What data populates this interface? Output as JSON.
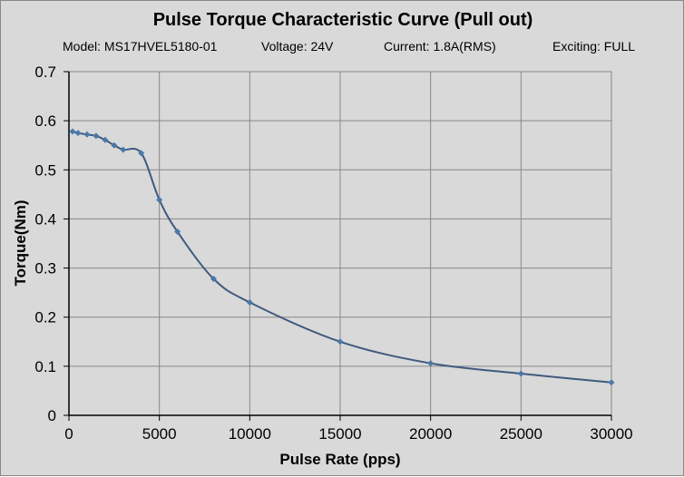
{
  "chart_data": {
    "type": "line",
    "title": "Pulse Torque Characteristic Curve (Pull out)",
    "subtitle": {
      "model": "Model: MS17HVEL5180-01",
      "voltage": "Voltage: 24V",
      "current": "Current:  1.8A(RMS)",
      "exciting": "Exciting: FULL"
    },
    "xlabel": "Pulse Rate (pps)",
    "ylabel": "Torque(Nm)",
    "xlim": [
      0,
      30000
    ],
    "ylim": [
      0,
      0.7
    ],
    "xticks": [
      "0",
      "5000",
      "10000",
      "15000",
      "20000",
      "25000",
      "30000"
    ],
    "yticks": [
      "0",
      "0.1",
      "0.2",
      "0.3",
      "0.4",
      "0.5",
      "0.6",
      "0.7"
    ],
    "grid": true,
    "series": [
      {
        "name": "Torque",
        "color": "#3f5a7e",
        "marker_color": "#4a78a8",
        "x": [
          200,
          500,
          1000,
          1500,
          2000,
          2500,
          3000,
          4000,
          5000,
          6000,
          8000,
          10000,
          15000,
          20000,
          25000,
          30000
        ],
        "y": [
          0.578,
          0.575,
          0.572,
          0.569,
          0.561,
          0.55,
          0.541,
          0.534,
          0.439,
          0.374,
          0.278,
          0.23,
          0.15,
          0.106,
          0.085,
          0.067
        ]
      }
    ]
  }
}
